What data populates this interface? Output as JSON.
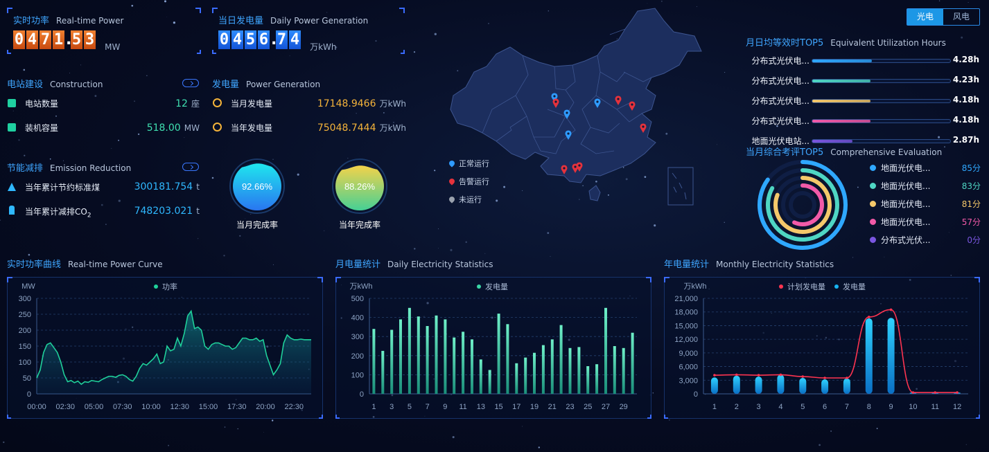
{
  "toggle": {
    "solar": "光电",
    "wind": "风电"
  },
  "realtime_power": {
    "title_cn": "实时功率",
    "title_en": "Real-time Power",
    "digits": [
      "0",
      "4",
      "7",
      "1",
      ".",
      "5",
      "3"
    ],
    "unit": "MW"
  },
  "daily_generation": {
    "title_cn": "当日发电量",
    "title_en": "Daily Power Generation",
    "digits": [
      "0",
      "4",
      "5",
      "6",
      ".",
      "7",
      "4"
    ],
    "unit": "万kWh"
  },
  "construction": {
    "title_cn": "电站建设",
    "title_en": "Construction",
    "items": [
      {
        "label": "电站数量",
        "value": "12",
        "unit": "座"
      },
      {
        "label": "装机容量",
        "value": "518.00",
        "unit": "MW"
      }
    ]
  },
  "power_generation": {
    "title_cn": "发电量",
    "title_en": "Power Generation",
    "items": [
      {
        "label": "当月发电量",
        "value": "17148.9466",
        "unit": "万kWh"
      },
      {
        "label": "当年发电量",
        "value": "75048.7444",
        "unit": "万kWh"
      }
    ]
  },
  "emission": {
    "title_cn": "节能减排",
    "title_en": "Emission Reduction",
    "items": [
      {
        "label": "当年累计节约标准煤",
        "value": "300181.754",
        "unit": "t"
      },
      {
        "label": "当年累计减排CO",
        "sub": "2",
        "value": "748203.021",
        "unit": "t"
      }
    ]
  },
  "completion": [
    {
      "value": "92.66%",
      "label": "当月完成率",
      "fraction": 0.9266
    },
    {
      "value": "88.26%",
      "label": "当年完成率",
      "fraction": 0.8826
    }
  ],
  "map_legend": [
    {
      "label": "正常运行",
      "color": "#2f9bff"
    },
    {
      "label": "告警运行",
      "color": "#e5323c"
    },
    {
      "label": "未运行",
      "color": "#9aa2ae"
    }
  ],
  "top5": {
    "title_cn": "月日均等效时TOP5",
    "title_en": "Equivalent Utilization Hours",
    "items": [
      {
        "label": "分布式光伏电...",
        "value": "4.28h",
        "ratio": 0.43,
        "color": "#2fa8ff"
      },
      {
        "label": "分布式光伏电...",
        "value": "4.23h",
        "ratio": 0.42,
        "color": "#4fd6c3"
      },
      {
        "label": "分布式光伏电...",
        "value": "4.18h",
        "ratio": 0.42,
        "color": "#f5c86a"
      },
      {
        "label": "分布式光伏电...",
        "value": "4.18h",
        "ratio": 0.42,
        "color": "#f25aa8"
      },
      {
        "label": "地面光伏电站...",
        "value": "2.87h",
        "ratio": 0.29,
        "color": "#7a56e0"
      }
    ]
  },
  "evaluation": {
    "title_cn": "当月综合考评TOP5",
    "title_en": "Comprehensive Evaluation",
    "items": [
      {
        "label": "地面光伏电...",
        "value": "85分",
        "score": 85,
        "color": "#2fa8ff"
      },
      {
        "label": "地面光伏电...",
        "value": "83分",
        "score": 83,
        "color": "#4fd6c3"
      },
      {
        "label": "地面光伏电...",
        "value": "81分",
        "score": 81,
        "color": "#f5c86a"
      },
      {
        "label": "地面光伏电...",
        "value": "57分",
        "score": 57,
        "color": "#f25aa8"
      },
      {
        "label": "分布式光伏...",
        "value": "0分",
        "score": 0,
        "color": "#7a56e0"
      }
    ]
  },
  "charts": {
    "realtime": {
      "title_cn": "实时功率曲线",
      "title_en": "Real-time Power Curve"
    },
    "daily": {
      "title_cn": "月电量统计",
      "title_en": "Daily Electricity Statistics"
    },
    "monthly": {
      "title_cn": "年电量统计",
      "title_en": "Monthly Electricity Statistics"
    }
  },
  "chart_data": [
    {
      "type": "area",
      "ylabel": "MW",
      "ylim": [
        0,
        300
      ],
      "yticks": [
        "0",
        "50",
        "100",
        "150",
        "200",
        "250",
        "300"
      ],
      "xticks": [
        "00:00",
        "02:30",
        "05:00",
        "07:30",
        "10:00",
        "12:30",
        "15:00",
        "17:30",
        "20:00",
        "22:30"
      ],
      "x_range_hours": [
        0,
        24
      ],
      "series": [
        {
          "name": "功率",
          "color": "#1fd09a",
          "x": [
            0,
            0.3,
            0.6,
            0.9,
            1.2,
            1.5,
            1.8,
            2.1,
            2.4,
            2.7,
            3.0,
            3.3,
            3.6,
            3.9,
            4.2,
            4.5,
            4.8,
            5.1,
            5.4,
            5.7,
            6.0,
            6.3,
            6.6,
            6.9,
            7.2,
            7.5,
            7.8,
            8.1,
            8.4,
            8.7,
            9.0,
            9.3,
            9.6,
            9.9,
            10.2,
            10.5,
            10.8,
            11.1,
            11.4,
            11.7,
            12.0,
            12.3,
            12.6,
            12.9,
            13.2,
            13.5,
            13.8,
            14.1,
            14.4,
            14.7,
            15.0,
            15.3,
            15.6,
            15.9,
            16.2,
            16.5,
            16.8,
            17.1,
            17.4,
            17.7,
            18.0,
            18.3,
            18.6,
            18.9,
            19.2,
            19.5,
            19.8,
            20.1,
            20.4,
            20.7,
            21.0,
            21.3,
            21.6,
            21.9,
            22.2,
            22.5,
            22.8,
            23.1,
            23.4,
            23.7,
            24.0
          ],
          "values": [
            50,
            75,
            130,
            155,
            160,
            145,
            130,
            100,
            60,
            38,
            42,
            35,
            40,
            30,
            38,
            36,
            42,
            40,
            38,
            45,
            50,
            55,
            55,
            52,
            58,
            60,
            55,
            45,
            40,
            55,
            80,
            95,
            90,
            100,
            110,
            125,
            95,
            100,
            150,
            135,
            140,
            175,
            150,
            190,
            245,
            260,
            205,
            210,
            200,
            150,
            140,
            155,
            160,
            160,
            155,
            150,
            150,
            140,
            145,
            160,
            175,
            175,
            170,
            170,
            175,
            165,
            170,
            120,
            90,
            60,
            75,
            95,
            160,
            185,
            175,
            170,
            170,
            172,
            170,
            170,
            170
          ]
        }
      ]
    },
    {
      "type": "bar",
      "ylabel": "万kWh",
      "ylim": [
        0,
        500
      ],
      "yticks": [
        "0",
        "100",
        "200",
        "300",
        "400",
        "500"
      ],
      "xticks": [
        "1",
        "3",
        "5",
        "7",
        "9",
        "11",
        "13",
        "15",
        "17",
        "19",
        "21",
        "23",
        "25",
        "27",
        "29"
      ],
      "categories": [
        "1",
        "2",
        "3",
        "4",
        "5",
        "6",
        "7",
        "8",
        "9",
        "10",
        "11",
        "12",
        "13",
        "14",
        "15",
        "16",
        "17",
        "18",
        "19",
        "20",
        "21",
        "22",
        "23",
        "24",
        "25",
        "26",
        "27",
        "28",
        "29",
        "30"
      ],
      "series": [
        {
          "name": "发电量",
          "color": "#3ad6a6",
          "values": [
            340,
            225,
            335,
            390,
            450,
            405,
            355,
            410,
            390,
            295,
            325,
            285,
            180,
            125,
            420,
            365,
            160,
            190,
            215,
            255,
            285,
            360,
            240,
            245,
            145,
            155,
            450,
            250,
            240,
            320
          ]
        }
      ]
    },
    {
      "type": "bar",
      "ylabel": "万kWh",
      "ylim": [
        0,
        21000
      ],
      "yticks": [
        "0",
        "3,000",
        "6,000",
        "9,000",
        "12,000",
        "15,000",
        "18,000",
        "21,000"
      ],
      "categories": [
        "1",
        "2",
        "3",
        "4",
        "5",
        "6",
        "7",
        "8",
        "9",
        "10",
        "11",
        "12"
      ],
      "series": [
        {
          "name": "计划发电量",
          "type": "line",
          "color": "#ff3450",
          "values": [
            4100,
            4200,
            4100,
            4200,
            3800,
            3500,
            3500,
            16900,
            18500,
            300,
            300,
            300
          ]
        },
        {
          "name": "发电量",
          "type": "bar",
          "color": "#17b4f2",
          "values": [
            3600,
            4000,
            3800,
            4200,
            3500,
            3200,
            3400,
            16600,
            16700,
            150,
            180,
            120
          ]
        }
      ]
    }
  ]
}
